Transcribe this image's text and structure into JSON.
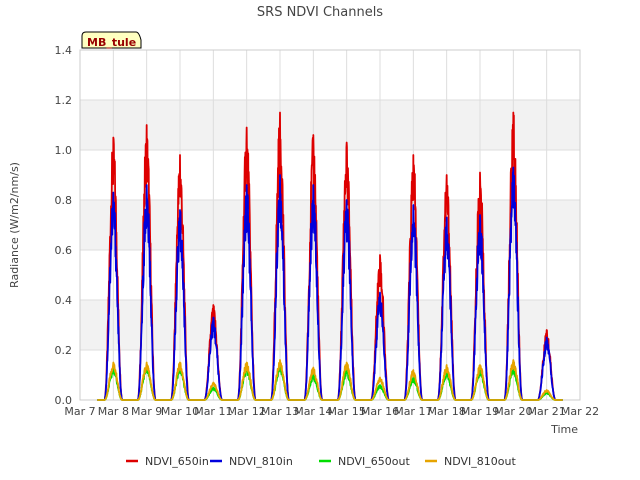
{
  "chart_data": {
    "type": "line",
    "title": "SRS NDVI Channels",
    "xlabel": "Time",
    "ylabel": "Radiance (W/m2/nm/s)",
    "xlim": [
      7,
      22
    ],
    "ylim": [
      0,
      1.4
    ],
    "x_ticks": [
      {
        "value": 7,
        "label": "Mar 7"
      },
      {
        "value": 8,
        "label": "Mar 8"
      },
      {
        "value": 9,
        "label": "Mar 9"
      },
      {
        "value": 10,
        "label": "Mar 10"
      },
      {
        "value": 11,
        "label": "Mar 11"
      },
      {
        "value": 12,
        "label": "Mar 12"
      },
      {
        "value": 13,
        "label": "Mar 13"
      },
      {
        "value": 14,
        "label": "Mar 14"
      },
      {
        "value": 15,
        "label": "Mar 15"
      },
      {
        "value": 16,
        "label": "Mar 16"
      },
      {
        "value": 17,
        "label": "Mar 17"
      },
      {
        "value": 18,
        "label": "Mar 18"
      },
      {
        "value": 19,
        "label": "Mar 19"
      },
      {
        "value": 20,
        "label": "Mar 20"
      },
      {
        "value": 21,
        "label": "Mar 21"
      },
      {
        "value": 22,
        "label": "Mar 22"
      }
    ],
    "y_ticks": [
      {
        "value": 0,
        "label": "0.0"
      },
      {
        "value": 0.2,
        "label": "0.2"
      },
      {
        "value": 0.4,
        "label": "0.4"
      },
      {
        "value": 0.6,
        "label": "0.6"
      },
      {
        "value": 0.8,
        "label": "0.8"
      },
      {
        "value": 1.0,
        "label": "1.0"
      },
      {
        "value": 1.2,
        "label": "1.2"
      },
      {
        "value": 1.4,
        "label": "1.4"
      }
    ],
    "annotation": "MB_tule",
    "legend_position": "bottom",
    "series": [
      {
        "name": "NDVI_650in",
        "color": "#dd0000",
        "daily_peaks": [
          1.05,
          1.1,
          0.98,
          0.38,
          1.09,
          1.15,
          1.06,
          1.03,
          0.58,
          0.98,
          0.9,
          0.91,
          1.15,
          0.28
        ]
      },
      {
        "name": "NDVI_810in",
        "color": "#0000dd",
        "daily_peaks": [
          0.83,
          0.86,
          0.76,
          0.33,
          0.86,
          0.9,
          0.86,
          0.8,
          0.43,
          0.78,
          0.73,
          0.74,
          0.93,
          0.25
        ]
      },
      {
        "name": "NDVI_650out",
        "color": "#00dd00",
        "daily_peaks": [
          0.13,
          0.14,
          0.13,
          0.05,
          0.13,
          0.14,
          0.1,
          0.12,
          0.06,
          0.09,
          0.11,
          0.12,
          0.13,
          0.03
        ]
      },
      {
        "name": "NDVI_810out",
        "color": "#e6a400",
        "daily_peaks": [
          0.15,
          0.15,
          0.15,
          0.07,
          0.15,
          0.16,
          0.13,
          0.15,
          0.09,
          0.12,
          0.14,
          0.14,
          0.16,
          0.04
        ]
      }
    ],
    "day_centers": [
      8.0,
      9.0,
      10.0,
      11.0,
      12.0,
      13.0,
      14.0,
      15.0,
      16.0,
      17.0,
      18.0,
      19.0,
      20.0,
      21.0
    ]
  }
}
